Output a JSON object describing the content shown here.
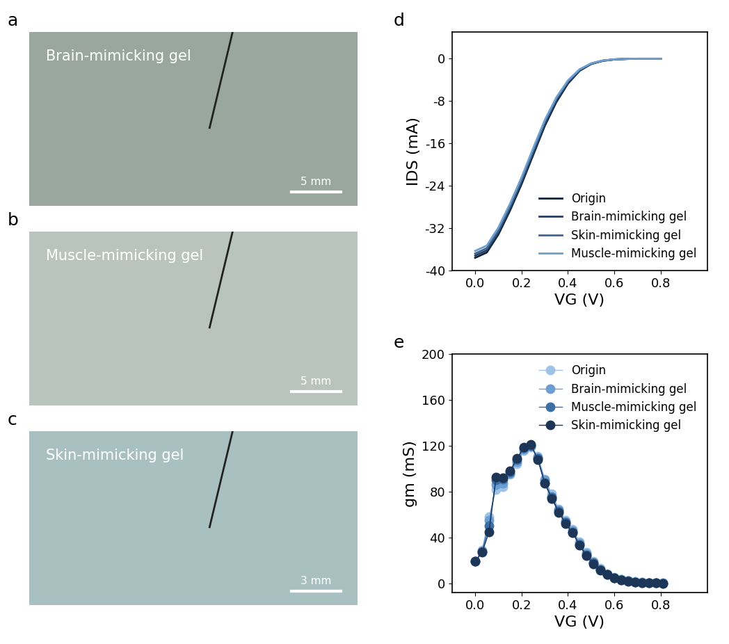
{
  "panel_labels": [
    "a",
    "b",
    "c",
    "d",
    "e"
  ],
  "photos": [
    {
      "caption": "Brain-mimicking gel",
      "scale_bar": "5 mm"
    },
    {
      "caption": "Muscle-mimicking gel",
      "scale_bar": "5 mm"
    },
    {
      "caption": "Skin-mimicking gel",
      "scale_bar": "3 mm"
    }
  ],
  "chart_data": [
    {
      "type": "line",
      "x_label": "VG (V)",
      "y_label": "IDS (mA)",
      "x": [
        0.0,
        0.05,
        0.1,
        0.15,
        0.2,
        0.25,
        0.3,
        0.35,
        0.4,
        0.45,
        0.5,
        0.55,
        0.6,
        0.65,
        0.7,
        0.75,
        0.8
      ],
      "xlim": [
        -0.1,
        1.0
      ],
      "xticks": [
        {
          "value": 0,
          "label": "0.0"
        },
        {
          "value": 0.2,
          "label": "0.2"
        },
        {
          "value": 0.4,
          "label": "0.4"
        },
        {
          "value": 0.6,
          "label": "0.6"
        },
        {
          "value": 0.8,
          "label": "0.8"
        }
      ],
      "ylim": [
        -40,
        5
      ],
      "yticks": [
        0,
        -8,
        -16,
        -24,
        -32,
        -40
      ],
      "legend": "lower right",
      "series": [
        {
          "name": "Origin",
          "color": "#0f2238",
          "values": [
            -37.6,
            -36.6,
            -33.2,
            -28.7,
            -23.7,
            -18.2,
            -12.7,
            -8.2,
            -4.7,
            -2.3,
            -1.0,
            -0.4,
            -0.15,
            -0.05,
            0,
            0,
            0
          ]
        },
        {
          "name": "Brain-mimicking gel",
          "color": "#243f62",
          "values": [
            -37.2,
            -36.2,
            -32.8,
            -28.3,
            -23.3,
            -17.8,
            -12.3,
            -7.9,
            -4.5,
            -2.2,
            -1.0,
            -0.4,
            -0.15,
            -0.05,
            0,
            0,
            0
          ]
        },
        {
          "name": "Skin-mimicking gel",
          "color": "#3f6690",
          "values": [
            -36.8,
            -35.8,
            -32.4,
            -27.9,
            -22.9,
            -17.4,
            -12.0,
            -7.6,
            -4.3,
            -2.1,
            -0.9,
            -0.35,
            -0.12,
            -0.04,
            0,
            0,
            0
          ]
        },
        {
          "name": "Muscle-mimicking gel",
          "color": "#6f9fcf",
          "values": [
            -36.3,
            -35.3,
            -31.9,
            -27.4,
            -22.4,
            -16.9,
            -11.6,
            -7.3,
            -4.1,
            -2.0,
            -0.9,
            -0.35,
            -0.12,
            -0.04,
            0,
            0,
            0
          ]
        }
      ]
    },
    {
      "type": "line",
      "marker": "o",
      "x_label": "VG (V)",
      "y_label": "gm (mS)",
      "x": [
        0.0,
        0.03,
        0.06,
        0.09,
        0.12,
        0.15,
        0.18,
        0.21,
        0.24,
        0.27,
        0.3,
        0.33,
        0.36,
        0.39,
        0.42,
        0.45,
        0.48,
        0.51,
        0.54,
        0.57,
        0.6,
        0.63,
        0.66,
        0.69,
        0.72,
        0.75,
        0.78,
        0.81
      ],
      "xlim": [
        -0.1,
        1.0
      ],
      "xticks": [
        {
          "value": 0,
          "label": "0.0"
        },
        {
          "value": 0.2,
          "label": "0.2"
        },
        {
          "value": 0.4,
          "label": "0.4"
        },
        {
          "value": 0.6,
          "label": "0.6"
        },
        {
          "value": 0.8,
          "label": "0.8"
        }
      ],
      "ylim": [
        -8,
        200
      ],
      "yticks": [
        0,
        40,
        80,
        120,
        160,
        200
      ],
      "legend": "upper right",
      "series": [
        {
          "name": "Origin",
          "color": "#9fc3e6",
          "values": [
            19,
            29,
            58,
            82,
            84,
            95,
            104,
            116,
            119,
            111,
            91,
            78,
            65,
            55,
            47,
            36,
            27,
            19,
            13,
            8.5,
            5.5,
            3.5,
            2.2,
            1.4,
            0.8,
            0.5,
            0.3,
            0.2
          ]
        },
        {
          "name": "Brain-mimicking gel",
          "color": "#6a9fd4",
          "values": [
            19,
            28,
            55,
            86,
            87,
            96,
            106,
            117,
            120,
            110,
            90,
            76,
            64,
            54,
            46,
            35,
            26,
            18,
            12,
            8,
            5,
            3.2,
            2.0,
            1.3,
            0.8,
            0.5,
            0.3,
            0.2
          ]
        },
        {
          "name": "Muscle-mimicking gel",
          "color": "#3c6ea6",
          "values": [
            19,
            28,
            50,
            90,
            91,
            97,
            108,
            118,
            120,
            109,
            88,
            75,
            63,
            53,
            45,
            34,
            25,
            18,
            12,
            8,
            5,
            3,
            2,
            1.2,
            0.7,
            0.4,
            0.2,
            0.1
          ]
        },
        {
          "name": "Skin-mimicking gel",
          "color": "#1d3557",
          "values": [
            19,
            27,
            45,
            93,
            92,
            98,
            109,
            119,
            121,
            108,
            87,
            74,
            62,
            52,
            44,
            33,
            24,
            17,
            11.5,
            7.5,
            4.8,
            3,
            1.9,
            1.2,
            0.7,
            0.4,
            0.2,
            0.1
          ]
        }
      ]
    }
  ]
}
